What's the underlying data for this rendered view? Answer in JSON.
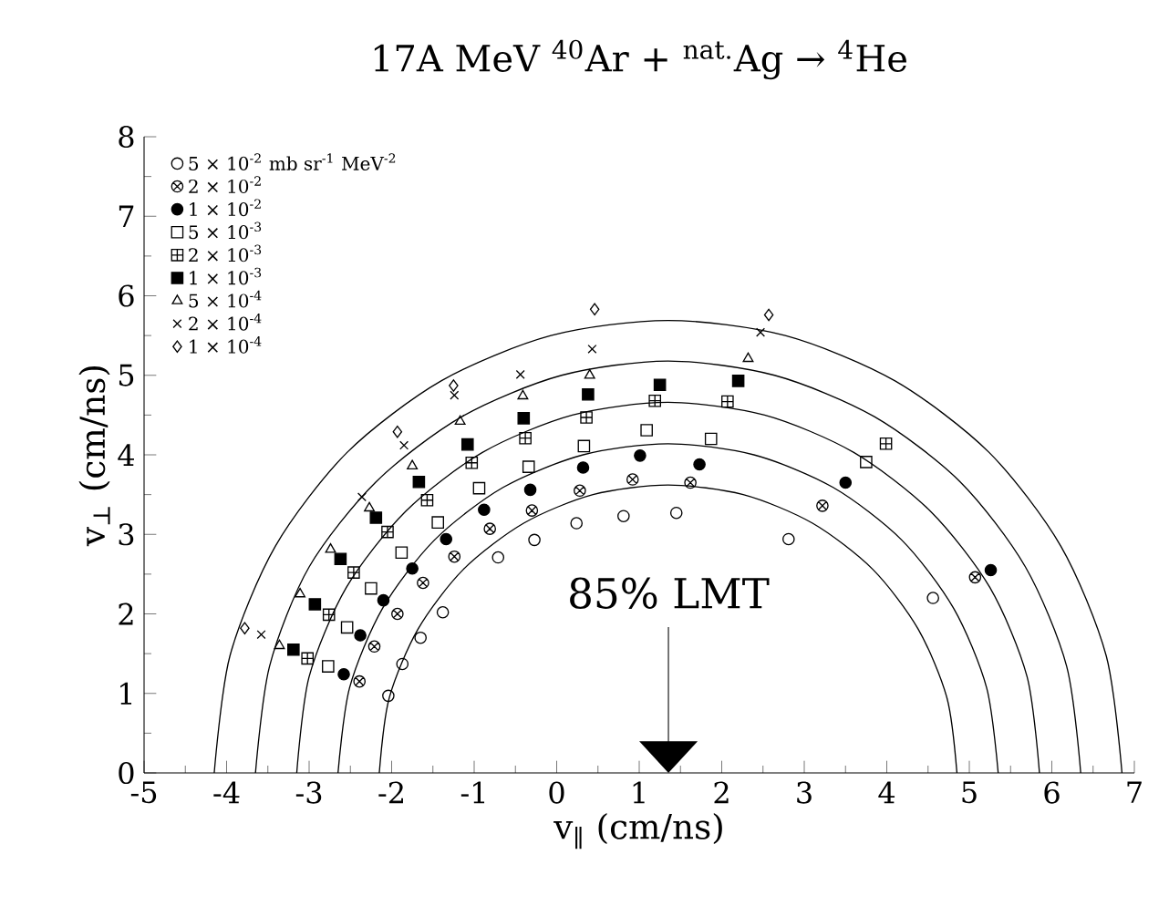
{
  "chart_data": {
    "type": "scatter",
    "title": "17A MeV $^{40}$Ar + $^{nat.}$Ag → $^{4}$He",
    "xlabel": "v$_{∥}$ (cm/ns)",
    "ylabel": "v$_{⊥}$ (cm/ns)",
    "xlim": [
      -5,
      7
    ],
    "ylim": [
      0,
      8
    ],
    "xticks": [
      -5,
      -4,
      -3,
      -2,
      -1,
      0,
      1,
      2,
      3,
      4,
      5,
      6,
      7
    ],
    "yticks": [
      0,
      1,
      2,
      3,
      4,
      5,
      6,
      7,
      8
    ],
    "legend": "top left",
    "annotations": [
      "85% LMT"
    ],
    "series": [
      {
        "name": "5 × 10$^{-2}$ mb sr$^{-1}$ MeV$^{-2}$",
        "color": "#000000",
        "marker": "circle",
        "x": [
          -2.04,
          -1.87,
          -1.65,
          -1.38,
          -0.71,
          -0.27,
          0.24,
          0.81,
          1.45,
          2.81,
          4.56
        ],
        "values": [
          0.97,
          1.37,
          1.7,
          2.02,
          2.71,
          2.93,
          3.14,
          3.23,
          3.27,
          2.94,
          2.2
        ]
      },
      {
        "name": "2 × 10$^{-2}$",
        "color": "#000000",
        "marker": "cross",
        "x": [
          -2.39,
          -2.21,
          -1.93,
          -1.62,
          -1.24,
          -0.81,
          -0.3,
          0.28,
          0.92,
          1.62,
          3.22,
          5.07
        ],
        "values": [
          1.15,
          1.59,
          2.0,
          2.39,
          2.72,
          3.07,
          3.3,
          3.55,
          3.69,
          3.65,
          3.36,
          2.46
        ]
      },
      {
        "name": "1 × 10$^{-2}$",
        "color": "#000000",
        "marker": "circle",
        "x": [
          -2.58,
          -2.38,
          -2.1,
          -1.75,
          -1.34,
          -0.88,
          -0.32,
          0.32,
          1.01,
          1.73,
          3.5,
          5.26
        ],
        "values": [
          1.24,
          1.73,
          2.17,
          2.57,
          2.94,
          3.31,
          3.56,
          3.84,
          3.99,
          3.88,
          3.65,
          2.55
        ]
      },
      {
        "name": "5 × 10$^{-3}$",
        "color": "#000000",
        "marker": "square",
        "x": [
          -2.77,
          -2.54,
          -2.25,
          -1.88,
          -1.44,
          -0.94,
          -0.34,
          0.33,
          1.09,
          1.87,
          3.75
        ],
        "values": [
          1.34,
          1.83,
          2.32,
          2.77,
          3.15,
          3.58,
          3.85,
          4.11,
          4.31,
          4.2,
          3.91
        ]
      },
      {
        "name": "2 × 10$^{-3}$",
        "color": "#000000",
        "marker": "cross",
        "x": [
          -3.02,
          -2.76,
          -2.46,
          -2.05,
          -1.57,
          -1.03,
          -0.38,
          0.36,
          1.19,
          2.07,
          3.99
        ],
        "values": [
          1.44,
          1.99,
          2.52,
          3.03,
          3.43,
          3.9,
          4.21,
          4.47,
          4.68,
          4.67,
          4.14
        ]
      },
      {
        "name": "1 × 10$^{-3}$",
        "color": "#000000",
        "marker": "square",
        "x": [
          -3.19,
          -2.93,
          -2.62,
          -2.19,
          -1.67,
          -1.08,
          -0.4,
          0.38,
          1.25,
          2.2
        ],
        "values": [
          1.55,
          2.12,
          2.69,
          3.21,
          3.66,
          4.13,
          4.46,
          4.76,
          4.88,
          4.93
        ]
      },
      {
        "name": "5 × 10$^{-4}$",
        "color": "#000000",
        "marker": "triangle",
        "x": [
          -3.36,
          -3.11,
          -2.74,
          -2.27,
          -1.75,
          -1.17,
          -0.41,
          0.4,
          2.32
        ],
        "values": [
          1.6,
          2.25,
          2.81,
          3.33,
          3.86,
          4.42,
          4.74,
          5.0,
          5.21
        ]
      },
      {
        "name": "2 × 10$^{-4}$",
        "color": "#000000",
        "marker": "cross",
        "x": [
          -3.58,
          -2.36,
          -1.85,
          -1.24,
          -0.44,
          0.43,
          2.47
        ],
        "values": [
          1.74,
          3.47,
          4.12,
          4.75,
          5.01,
          5.33,
          5.54
        ]
      },
      {
        "name": "1 × 10$^{-4}$",
        "color": "#000000",
        "marker": "diamond",
        "x": [
          -3.78,
          -1.93,
          -1.25,
          0.46,
          2.57
        ],
        "values": [
          1.82,
          4.29,
          4.87,
          5.83,
          5.76
        ]
      },
      {
        "type": "line",
        "color": "#000000",
        "marker": "none",
        "x": [
          4.85,
          4.73,
          4.38,
          3.83,
          3.1,
          2.26,
          1.35,
          0.44,
          -0.4,
          -1.13,
          -1.68,
          -2.03,
          -2.15
        ],
        "values": [
          0,
          0.94,
          1.81,
          2.56,
          3.14,
          3.5,
          3.62,
          3.5,
          3.14,
          2.56,
          1.81,
          0.94,
          0
        ]
      },
      {
        "type": "line",
        "color": "#000000",
        "marker": "none",
        "x": [
          5.35,
          5.21,
          4.81,
          4.18,
          3.35,
          2.39,
          1.35,
          0.32,
          -0.65,
          -1.48,
          -2.11,
          -2.51,
          -2.65
        ],
        "values": [
          0,
          1.07,
          2.07,
          2.93,
          3.59,
          4.0,
          4.14,
          4.0,
          3.59,
          2.93,
          2.07,
          1.07,
          0
        ]
      },
      {
        "type": "line",
        "color": "#000000",
        "marker": "none",
        "x": [
          5.85,
          5.7,
          5.25,
          4.53,
          3.6,
          2.52,
          1.35,
          0.19,
          -0.9,
          -1.83,
          -2.55,
          -3.0,
          -3.15
        ],
        "values": [
          0,
          1.21,
          2.33,
          3.29,
          4.03,
          4.5,
          4.66,
          4.5,
          4.03,
          3.29,
          2.33,
          1.21,
          0
        ]
      },
      {
        "type": "line",
        "color": "#000000",
        "marker": "none",
        "x": [
          6.35,
          6.18,
          5.68,
          4.89,
          3.85,
          2.64,
          1.35,
          0.06,
          -1.15,
          -2.19,
          -3.0,
          -3.48,
          -3.65
        ],
        "values": [
          0,
          1.34,
          2.59,
          3.66,
          4.48,
          5.0,
          5.18,
          5.0,
          4.48,
          3.66,
          2.59,
          1.34,
          0
        ]
      },
      {
        "type": "line",
        "color": "#000000",
        "marker": "none",
        "x": [
          6.85,
          6.66,
          6.11,
          5.24,
          4.1,
          2.77,
          1.35,
          -0.07,
          -1.4,
          -2.54,
          -3.41,
          -3.96,
          -4.15
        ],
        "values": [
          0,
          1.47,
          2.85,
          4.03,
          4.93,
          5.5,
          5.69,
          5.5,
          4.93,
          4.03,
          2.85,
          1.47,
          0
        ]
      }
    ]
  }
}
